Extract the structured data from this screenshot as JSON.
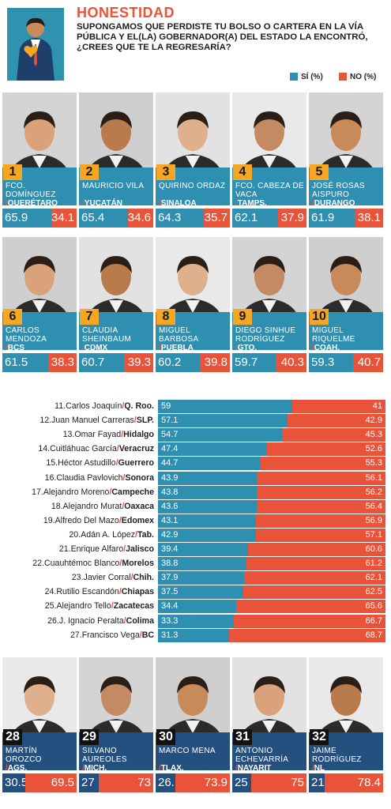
{
  "header": {
    "title": "HONESTIDAD",
    "question": "SUPONGAMOS QUE PERDISTE TU BOLSO O CARTERA EN LA VÍA PÚBLICA Y EL(LA) GOBERNADOR(A) DEL ESTADO LA ENCONTRÓ, ¿CREES QUE TE LA REGRESARÍA?",
    "legend_si": "SÍ (%)",
    "legend_no": "NO (%)"
  },
  "colors": {
    "si": "#2f8fb0",
    "si_dark": "#24507f",
    "no": "#e8533a",
    "rank": "#f5a623"
  },
  "chart_data": {
    "type": "bar",
    "title": "HONESTIDAD",
    "subtitle": "SUPONGAMOS QUE PERDISTE TU BOLSO O CARTERA EN LA VÍA PÚBLICA Y EL(LA) GOBERNADOR(A) DEL ESTADO LA ENCONTRÓ, ¿CREES QUE TE LA REGRESARÍA?",
    "orientation": "horizontal-stacked",
    "series": [
      {
        "name": "SÍ (%)"
      },
      {
        "name": "NO (%)"
      }
    ],
    "top": [
      {
        "rank": "1",
        "name": "FCO. DOMÍNGUEZ",
        "state": "QUERÉTARO",
        "si": "65.9",
        "no": "34.1"
      },
      {
        "rank": "2",
        "name": "MAURICIO VILA",
        "state": "YUCATÁN",
        "si": "65.4",
        "no": "34.6"
      },
      {
        "rank": "3",
        "name": "QUIRINO ORDAZ",
        "state": "SINALOA",
        "si": "64.3",
        "no": "35.7"
      },
      {
        "rank": "4",
        "name": "FCO. CABEZA DE VACA",
        "state": "TAMPS.",
        "si": "62.1",
        "no": "37.9"
      },
      {
        "rank": "5",
        "name": "JOSÉ ROSAS AISPURO",
        "state": "DURANGO",
        "si": "61.9",
        "no": "38.1"
      },
      {
        "rank": "6",
        "name": "CARLOS MENDOZA",
        "state": "BCS",
        "si": "61.5",
        "no": "38.3"
      },
      {
        "rank": "7",
        "name": "CLAUDIA SHEINBAUM",
        "state": "CDMX",
        "si": "60.7",
        "no": "39.3"
      },
      {
        "rank": "8",
        "name": "MIGUEL BARBOSA",
        "state": "PUEBLA",
        "si": "60.2",
        "no": "39.8"
      },
      {
        "rank": "9",
        "name": "DIEGO SINHUE RODRÍGUEZ",
        "state": "GTO.",
        "si": "59.7",
        "no": "40.3"
      },
      {
        "rank": "10",
        "name": "MIGUEL RIQUELME",
        "state": "COAH.",
        "si": "59.3",
        "no": "40.7"
      }
    ],
    "middle": [
      {
        "rank": "11.",
        "name": "Carlos Joaquín",
        "state": "Q. Roo.",
        "si": "59",
        "no": "41"
      },
      {
        "rank": "12.",
        "name": "Juan Manuel Carreras",
        "state": "SLP.",
        "si": "57.1",
        "no": "42.9"
      },
      {
        "rank": "13.",
        "name": "Omar Fayad",
        "state": "Hidalgo",
        "si": "54.7",
        "no": "45.3"
      },
      {
        "rank": "14.",
        "name": "Cuitláhuac García",
        "state": "Veracruz",
        "si": "47.4",
        "no": "52.6"
      },
      {
        "rank": "15.",
        "name": "Héctor Astudillo",
        "state": "Guerrero",
        "si": "44.7",
        "no": "55.3"
      },
      {
        "rank": "16.",
        "name": "Claudia Pavlovich",
        "state": "Sonora",
        "si": "43.9",
        "no": "56.1"
      },
      {
        "rank": "17.",
        "name": "Alejandro Moreno",
        "state": "Campeche",
        "si": "43.8",
        "no": "56.2"
      },
      {
        "rank": "18.",
        "name": "Alejandro Murat",
        "state": "Oaxaca",
        "si": "43.6",
        "no": "56.4"
      },
      {
        "rank": "19.",
        "name": "Alfredo Del Mazo",
        "state": "Edomex",
        "si": "43.1",
        "no": "56.9"
      },
      {
        "rank": "20.",
        "name": "Adán A. López",
        "state": "Tab.",
        "si": "42.9",
        "no": "57.1"
      },
      {
        "rank": "21.",
        "name": "Enrique Alfaro",
        "state": "Jalisco",
        "si": "39.4",
        "no": "60.6"
      },
      {
        "rank": "22.",
        "name": "Cuauhtémoc Blanco",
        "state": "Morelos",
        "si": "38.8",
        "no": "61.2"
      },
      {
        "rank": "23.",
        "name": "Javier Corral",
        "state": "Chih.",
        "si": "37.9",
        "no": "62.1"
      },
      {
        "rank": "24.",
        "name": "Rutilio Escandón",
        "state": "Chiapas",
        "si": "37.5",
        "no": "62.5"
      },
      {
        "rank": "25.",
        "name": "Alejandro Tello",
        "state": "Zacatecas",
        "si": "34.4",
        "no": "65.6"
      },
      {
        "rank": "26.",
        "name": "J. Ignacio Peralta",
        "state": "Colima",
        "si": "33.3",
        "no": "66.7"
      },
      {
        "rank": "27.",
        "name": "Francisco Vega",
        "state": "BC",
        "si": "31.3",
        "no": "68.7"
      }
    ],
    "bottom": [
      {
        "rank": "28",
        "name": "MARTÍN OROZCO",
        "state": "AGS.",
        "si": "30.5",
        "no": "69.5"
      },
      {
        "rank": "29",
        "name": "SILVANO AUREOLES",
        "state": "MICH.",
        "si": "27",
        "no": "73"
      },
      {
        "rank": "30",
        "name": "MARCO MENA",
        "state": "TLAX.",
        "si": "26.1",
        "no": "73.9"
      },
      {
        "rank": "31",
        "name": "ANTONIO ECHEVARRÍA",
        "state": "NAYARIT",
        "si": "25",
        "no": "75"
      },
      {
        "rank": "32",
        "name": "JAIME RODRÍGUEZ",
        "state": "NL",
        "si": "21.6",
        "no": "78.4"
      }
    ]
  }
}
